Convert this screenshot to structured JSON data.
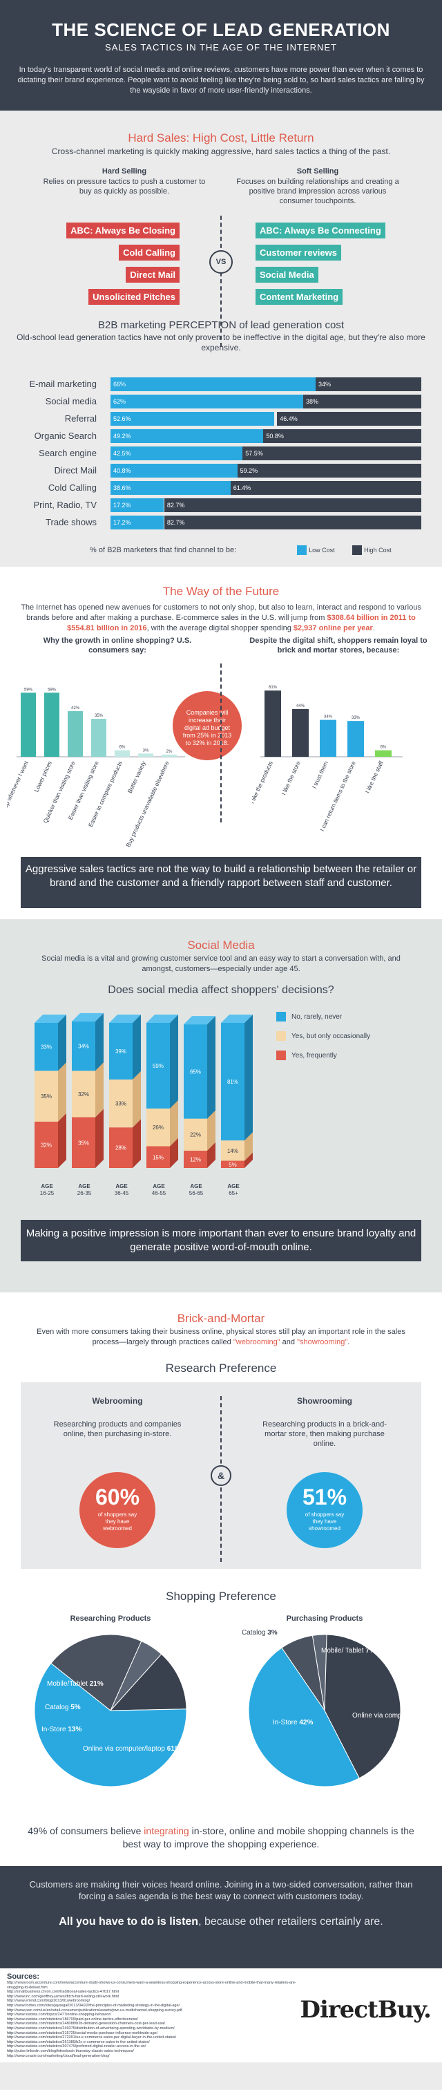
{
  "header": {
    "title": "THE SCIENCE OF LEAD GENERATION",
    "subtitle": "SALES TACTICS IN THE AGE OF THE INTERNET",
    "intro": "In today's transparent world of social media and online reviews, customers have more power than ever when it comes to dictating their brand experience. People want to avoid feeling like they're being sold to, so hard sales tactics are falling by the wayside in favor of more user-friendly interactions."
  },
  "hard_sales": {
    "title": "Hard Sales: High Cost, Little Return",
    "subtitle": "Cross-channel marketing is quickly making aggressive, hard sales tactics a thing of the past.",
    "left_heading": "Hard Selling",
    "left_text": "Relies on pressure tactics to push a customer to buy as quickly as possible.",
    "right_heading": "Soft Selling",
    "right_text": "Focuses on building relationships and creating a positive brand impression across various consumer touchpoints.",
    "left_tags": [
      "ABC: Always Be Closing",
      "Cold Calling",
      "Direct Mail",
      "Unsolicited Pitches"
    ],
    "right_tags": [
      "ABC: Always Be Connecting",
      "Customer reviews",
      "Social Media",
      "Content Marketing"
    ],
    "vs": "VS"
  },
  "perception": {
    "title": "B2B marketing PERCEPTION of lead generation cost",
    "subtitle": "Old-school lead generation tactics have not only proven to be ineffective in the digital age, but they're also more expensive.",
    "legend_caption": "% of B2B marketers that find channel to be:",
    "legend_low": "Low Cost",
    "legend_high": "High Cost",
    "colors": {
      "low": "#29a9e0",
      "high": "#39414e"
    }
  },
  "chart_data": [
    {
      "type": "bar",
      "orientation": "horizontal-stacked",
      "categories": [
        "E-mail marketing",
        "Social media",
        "Referral",
        "Organic Search",
        "Search engine",
        "Direct Mail",
        "Cold Calling",
        "Print, Radio, TV",
        "Trade shows"
      ],
      "series": [
        {
          "name": "Low Cost",
          "values": [
            66,
            62,
            52.6,
            49.2,
            42.5,
            40.8,
            38.6,
            17.2,
            17.2
          ],
          "labels": [
            "66%",
            "62%",
            "52.6%",
            "49.2%",
            "42.5%",
            "40.8%",
            "38.6%",
            "17.2%",
            "17.2%"
          ]
        },
        {
          "name": "High Cost",
          "values": [
            34,
            38,
            46.4,
            50.8,
            57.5,
            59.2,
            61.4,
            82.7,
            82.7
          ],
          "labels": [
            "34%",
            "38%",
            "46.4%",
            "50.8%",
            "57.5%",
            "59.2%",
            "61.4%",
            "82.7%",
            "82.7%"
          ]
        }
      ]
    },
    {
      "type": "bar",
      "title": "Why the growth in online shopping? U.S. consumers say:",
      "categories": [
        "I can shop whenever I want",
        "Lower prices",
        "Quicker than visiting store",
        "Easier than visiting store",
        "Easier to compare products",
        "Better variety",
        "Buy products unavailable elsewhere"
      ],
      "values": [
        59,
        59,
        42,
        35,
        6,
        3,
        2
      ],
      "labels": [
        "59%",
        "59%",
        "42%",
        "35%",
        "6%",
        "3%",
        "2%"
      ],
      "colors": [
        "#3bb3a6",
        "#3bb3a6",
        "#6ec8bf",
        "#8fd5cf",
        "#c2e8e4",
        "#c2e8e4",
        "#c2e8e4"
      ],
      "ylim": [
        0,
        70
      ]
    },
    {
      "type": "bar",
      "title": "Despite the digital shift, shoppers remain loyal to brick and mortar stores, because:",
      "categories": [
        "I like the products",
        "I like the store",
        "I trust them",
        "I can return items to the store",
        "I like the staff"
      ],
      "values": [
        61,
        44,
        34,
        33,
        6
      ],
      "labels": [
        "61%",
        "44%",
        "34%",
        "33%",
        "6%"
      ],
      "colors": [
        "#39414e",
        "#39414e",
        "#29a9e0",
        "#29a9e0",
        "#7ed957"
      ],
      "ylim": [
        0,
        70
      ]
    },
    {
      "type": "bar",
      "orientation": "vertical-stacked",
      "title": "Does social media affect shoppers' decisions?",
      "categories": [
        "AGE 16-25",
        "AGE 26-35",
        "AGE 36-45",
        "AGE 46-55",
        "AGE 56-65",
        "AGE 65+"
      ],
      "series": [
        {
          "name": "Yes, frequently",
          "values": [
            32,
            35,
            28,
            15,
            12,
            5
          ]
        },
        {
          "name": "Yes, but only occasionally",
          "values": [
            35,
            32,
            33,
            26,
            22,
            14
          ]
        },
        {
          "name": "No, rarely, never",
          "values": [
            33,
            34,
            39,
            59,
            65,
            81
          ]
        }
      ],
      "labels": {
        "Yes, frequently": [
          "32%",
          "35%",
          "28%",
          "15%",
          "12%",
          "5%"
        ],
        "Yes, but only occasionally": [
          "35%",
          "32%",
          "33%",
          "26%",
          "22%",
          "14%"
        ],
        "No, rarely, never": [
          "33%",
          "34%",
          "39%",
          "59%",
          "65%",
          "81%"
        ]
      },
      "colors": {
        "No, rarely, never": "#29a9e0",
        "Yes, but only occasionally": "#f6d7a7",
        "Yes, frequently": "#e05b4b"
      }
    },
    {
      "type": "pie",
      "title": "Researching Products",
      "categories": [
        "Online via computer/laptop",
        "In-Store",
        "Catalog",
        "Mobile/Tablet"
      ],
      "values": [
        61,
        13,
        5,
        21
      ],
      "labels": [
        "61%",
        "13%",
        "5%",
        "21%"
      ],
      "colors": [
        "#29a9e0",
        "#39414e",
        "#5c6573",
        "#4a525f"
      ]
    },
    {
      "type": "pie",
      "title": "Purchasing Products",
      "categories": [
        "Online via computer/laptop",
        "In-Store",
        "Catalog",
        "Mobile/ Tablet"
      ],
      "values": [
        48,
        42,
        3,
        7
      ],
      "labels": [
        "48%",
        "42%",
        "3%",
        "7%"
      ],
      "colors": [
        "#29a9e0",
        "#39414e",
        "#5c6573",
        "#4a525f"
      ]
    }
  ],
  "future": {
    "title": "The Way of the Future",
    "intro_a": "The Internet has opened new avenues for customers to not only shop, but also to learn, interact and respond to various brands before and after making a purchase. E-commerce sales in the U.S. will jump from ",
    "intro_hl1": "$308.64 billion in 2011 to $554.81 billion in 2016",
    "intro_b": ", with the average digital shopper spending ",
    "intro_hl2": "$2,937 online per year",
    "intro_c": ".",
    "left_title": "Why the growth in online shopping? U.S. consumers say:",
    "right_title": "Despite the digital shift, shoppers remain loyal to brick and mortar stores, because:",
    "bubble": "Companies will increase their digital ad budget from 25% in 2013 to 32% in 2018.",
    "banner": "Aggressive sales tactics are not the way to build a relationship between the retailer or brand and the customer and a friendly rapport between staff and customer."
  },
  "social": {
    "title": "Social Media",
    "intro": "Social media is a vital and growing customer service tool and an easy way to start a conversation with, and amongst, customers—especially under age 45.",
    "question": "Does social media affect shoppers' decisions?",
    "legend": [
      "No, rarely, never",
      "Yes, but only occasionally",
      "Yes, frequently"
    ],
    "age_top": [
      "AGE",
      "AGE",
      "AGE",
      "AGE",
      "AGE",
      "AGE"
    ],
    "age_bottom": [
      "16-25",
      "26-35",
      "36-45",
      "46-55",
      "56-65",
      "65+"
    ],
    "banner": "Making a positive impression is more important than ever to ensure brand loyalty and generate positive word-of-mouth online."
  },
  "brick": {
    "title": "Brick-and-Mortar",
    "intro_a": "Even with more consumers taking their business online, physical stores still play an important role in the sales process—largely through practices called ",
    "term1": "\"webrooming\"",
    "intro_and": " and ",
    "term2": "\"showrooming\"",
    "intro_c": ".",
    "research_title": "Research Preference",
    "web_heading": "Webrooming",
    "web_text": "Researching products and companies online, then purchasing in-store.",
    "web_pct": "60%",
    "web_caption": "of shoppers say they have webroomed",
    "show_heading": "Showrooming",
    "show_text": "Researching products in a brick-and-mortar store, then making purchase online.",
    "show_pct": "51%",
    "show_caption": "of shoppers say they have showroomed",
    "amp": "&",
    "shopping_title": "Shopping Preference",
    "pie_left_title": "Researching Products",
    "pie_right_title": "Purchasing Products",
    "quote_a": "49% of consumers believe ",
    "quote_hl": "integrating",
    "quote_b": " in-store, online and mobile shopping channels is the best way to improve the shopping experience."
  },
  "closing": {
    "text": "Customers are making their voices heard online. Joining in a two-sided conversation, rather than forcing a sales agenda is the best way to connect with customers today.",
    "strong_a": "All you have to do is listen",
    "strong_b": ", because other retailers certainly are."
  },
  "sources": {
    "title": "Sources:",
    "items": [
      "http://newsroom.accenture.com/news/accenture-study-shows-us-consumers-want-a-seamless-shopping-experience-across-store-online-and-mobile-that-many-retailers-are-struggling-to-deliver.htm",
      "http://smallbusiness.chron.com/traditional-sales-tactics-47017.html",
      "http://www.inc.com/geoffrey-james/ditch-hard-selling-still-work.html",
      "http://www.emind.com/blog/2013/01/webrooming/",
      "http://www.forbes.com/sites/jaysegal/2013/04/22/the-principles-of-marketing-strategy-in-the-digital-age/",
      "http://www.pwc.com/us/en/retail-consumer/publications/assets/pwc-us-multichannel-shopping-survey.pdf",
      "http://www.statista.com/topics/2477/online-shopping-behavior/",
      "http://www.statista.com/statistics/186709/paid-per-online-tactics-effectiveness/",
      "http://www.statista.com/statistics/248088/b2b-demand-generation-channels-cost-per-lead-usa/",
      "http://www.statista.com/statistics/249375/distribution-of-advertising-spending-worldwide-by-medium/",
      "http://www.statista.com/statistics/315725/social-media-purchase-influence-worldwide-age/",
      "http://www.statista.com/statistics/272391/us-e-commerce-sales-per-digital-buyer-in-the-united-states/",
      "http://www.statista.com/statistics/261389/b2c-e-commerce-sales-in-the-united-states/",
      "http://www.statista.com/statistics/307479/preferred-digital-retailer-access-in-the-us/",
      "http://pulse.linkedin.com/blog/hitreeback-thursday-classic-sales-techniques/",
      "http://www.ceasie.com/marketing/cloud/lead-generation-blog/"
    ],
    "logo": "DirectBuy."
  }
}
